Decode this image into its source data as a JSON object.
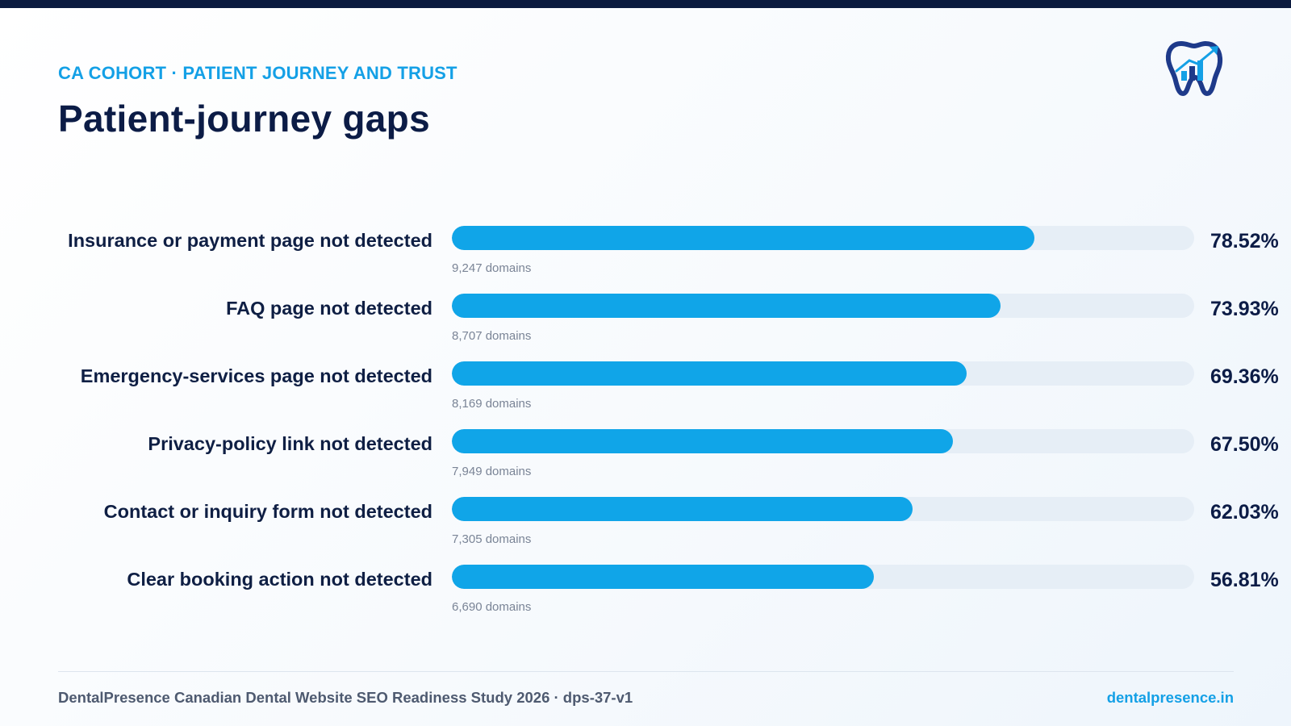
{
  "header": {
    "eyebrow": "CA COHORT · PATIENT JOURNEY AND TRUST",
    "title": "Patient-journey gaps"
  },
  "logo": {
    "icon": "tooth-chart-logo-icon",
    "primary_color": "#1e3a8a",
    "accent_color": "#14a0e6"
  },
  "colors": {
    "bar_fill": "#10a5e8",
    "bar_track": "#e6eef6",
    "accent": "#14a0e6",
    "navy": "#0c1c46"
  },
  "chart_data": {
    "type": "bar",
    "orientation": "horizontal",
    "ylim": [
      0,
      100
    ],
    "categories": [
      "Insurance or payment page not detected",
      "FAQ page not detected",
      "Emergency-services page not detected",
      "Privacy-policy link not detected",
      "Contact or inquiry form not detected",
      "Clear booking action not detected"
    ],
    "values": [
      78.52,
      73.93,
      69.36,
      67.5,
      62.03,
      56.81
    ],
    "value_labels": [
      "78.52%",
      "73.93%",
      "69.36%",
      "67.50%",
      "62.03%",
      "56.81%"
    ],
    "counts": [
      "9,247 domains",
      "8,707 domains",
      "8,169 domains",
      "7,949 domains",
      "7,305 domains",
      "6,690 domains"
    ]
  },
  "footer": {
    "left": "DentalPresence Canadian Dental Website SEO Readiness Study 2026 · dps-37-v1",
    "right": "dentalpresence.in"
  }
}
